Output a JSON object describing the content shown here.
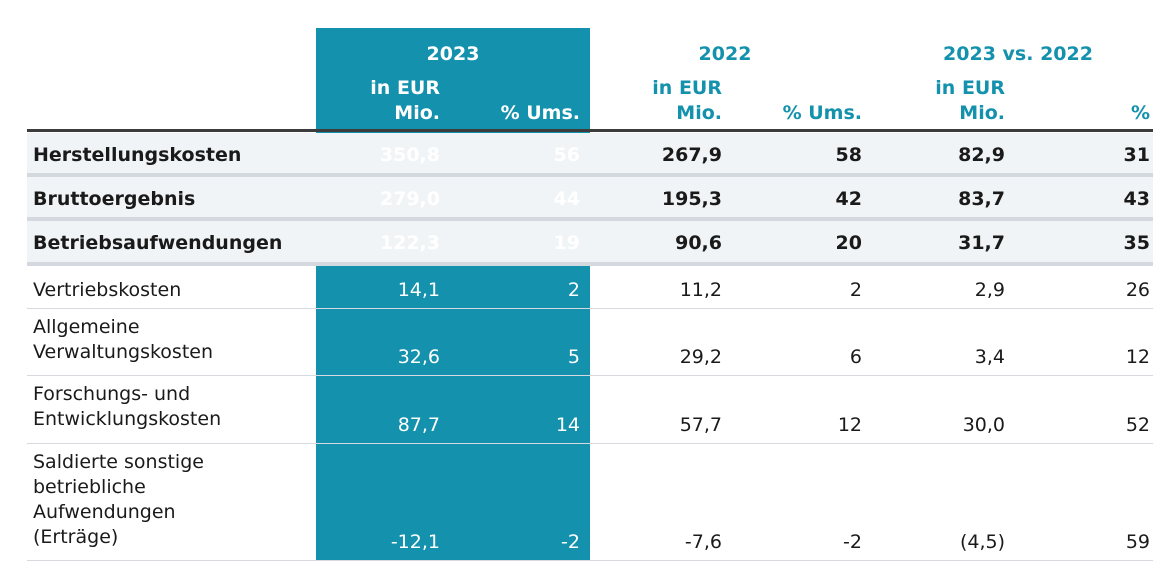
{
  "header": {
    "year_2023": "2023",
    "year_2022": "2022",
    "diff": "2023 vs. 2022",
    "in_eur": "in EUR",
    "mio": "Mio.",
    "pct_ums": "% Ums.",
    "pct": "%"
  },
  "rows": [
    {
      "label": [
        "Herstellungskosten"
      ],
      "v2023": "350,8",
      "p2023": "56",
      "v2022": "267,9",
      "p2022": "58",
      "diff": "82,9",
      "pct": "31"
    },
    {
      "label": [
        "Bruttoergebnis"
      ],
      "v2023": "279,0",
      "p2023": "44",
      "v2022": "195,3",
      "p2022": "42",
      "diff": "83,7",
      "pct": "43"
    },
    {
      "label": [
        "Betriebsaufwendungen"
      ],
      "v2023": "122,3",
      "p2023": "19",
      "v2022": "90,6",
      "p2022": "20",
      "diff": "31,7",
      "pct": "35"
    },
    {
      "label": [
        "Vertriebskosten"
      ],
      "v2023": "14,1",
      "p2023": "2",
      "v2022": "11,2",
      "p2022": "2",
      "diff": "2,9",
      "pct": "26"
    },
    {
      "label": [
        "Allgemeine",
        "Verwaltungskosten"
      ],
      "v2023": "32,6",
      "p2023": "5",
      "v2022": "29,2",
      "p2022": "6",
      "diff": "3,4",
      "pct": "12"
    },
    {
      "label": [
        "Forschungs- und",
        "Entwicklungskosten"
      ],
      "v2023": "87,7",
      "p2023": "14",
      "v2022": "57,7",
      "p2022": "12",
      "diff": "30,0",
      "pct": "52"
    },
    {
      "label": [
        "Saldierte sonstige",
        "betriebliche",
        "Aufwendungen",
        "(Erträge)"
      ],
      "v2023": "-12,1",
      "p2023": "-2",
      "v2022": "-7,6",
      "p2022": "-2",
      "diff": "(4,5)",
      "pct": "59"
    }
  ]
}
